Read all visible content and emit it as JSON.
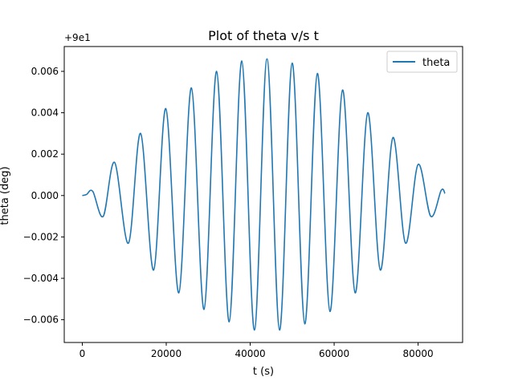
{
  "chart_data": {
    "type": "line",
    "title": "Plot of theta v/s t",
    "xlabel": "t (s)",
    "ylabel": "theta (deg)",
    "y_offset_label": "+9e1",
    "y_offset_value": 90,
    "xlim": [
      -4300,
      90600
    ],
    "ylim": [
      -0.0071,
      0.0072
    ],
    "x_ticks": [
      0,
      20000,
      40000,
      60000,
      80000
    ],
    "x_tick_labels": [
      "0",
      "20000",
      "40000",
      "60000",
      "80000"
    ],
    "y_ticks": [
      -0.006,
      -0.004,
      -0.002,
      0.0,
      0.002,
      0.004,
      0.006
    ],
    "y_tick_labels": [
      "−0.006",
      "−0.004",
      "−0.002",
      "0.000",
      "0.002",
      "0.004",
      "0.006"
    ],
    "grid": false,
    "legend_position": "upper right",
    "series": [
      {
        "name": "theta",
        "color": "#1f77b4",
        "x": [
          0,
          1000,
          2500,
          5000,
          7700,
          11000,
          13900,
          17000,
          19900,
          23000,
          26000,
          29000,
          32000,
          35000,
          38000,
          41000,
          44000,
          47000,
          50000,
          53000,
          56000,
          59000,
          62000,
          65000,
          68000,
          71000,
          74000,
          77000,
          80000,
          83000,
          85500,
          86400
        ],
        "y": [
          0.0,
          5e-05,
          0.0002,
          -0.001,
          0.0016,
          -0.0023,
          0.003,
          -0.0036,
          0.0042,
          -0.0047,
          0.0052,
          -0.0055,
          0.006,
          -0.0061,
          0.0065,
          -0.0065,
          0.0066,
          -0.0065,
          0.0064,
          -0.0062,
          0.0059,
          -0.0056,
          0.0051,
          -0.0047,
          0.004,
          -0.0036,
          0.0028,
          -0.0023,
          0.0015,
          -0.001,
          0.00025,
          0.0001
        ]
      }
    ]
  }
}
